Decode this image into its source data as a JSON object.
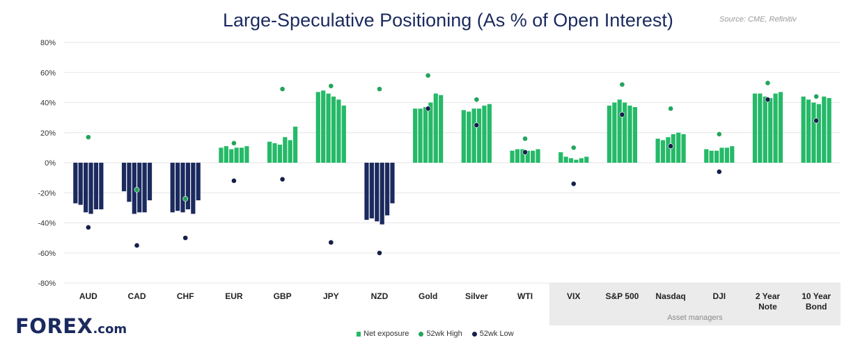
{
  "title": "Large-Speculative Positioning (As % of Open Interest)",
  "source": "Source: CME, Refinitiv",
  "logo": {
    "brand": "FOREX",
    "suffix": ".com"
  },
  "legend": {
    "net": "Net exposure",
    "high": "52wk High",
    "low": "52wk Low"
  },
  "asset_managers_label": "Asset managers",
  "colors": {
    "net": "#25b968",
    "net_negative": "#1b2a5e",
    "high": "#23a55a",
    "low": "#14204a",
    "shade": "#ebebeb",
    "grid": "#e6e6e6"
  },
  "chart_data": {
    "type": "bar",
    "ylim": [
      -80,
      80
    ],
    "yticks": [
      "80%",
      "60%",
      "40%",
      "20%",
      "0%",
      "-20%",
      "-40%",
      "-60%",
      "-80%"
    ],
    "categories": [
      {
        "label": [
          "AUD"
        ],
        "values": [
          -27,
          -28,
          -33,
          -34,
          -31,
          -31
        ],
        "high": 17,
        "low": -43
      },
      {
        "label": [
          "CAD"
        ],
        "values": [
          -19,
          -26,
          -34,
          -33,
          -33,
          -25
        ],
        "high": -18,
        "low": -55
      },
      {
        "label": [
          "CHF"
        ],
        "values": [
          -33,
          -32,
          -33,
          -31,
          -34,
          -25
        ],
        "high": -24,
        "low": -50
      },
      {
        "label": [
          "EUR"
        ],
        "values": [
          10,
          11,
          9,
          10,
          10,
          11
        ],
        "high": 13,
        "low": -12
      },
      {
        "label": [
          "GBP"
        ],
        "values": [
          14,
          13,
          12,
          17,
          15,
          24
        ],
        "high": 49,
        "low": -11
      },
      {
        "label": [
          "JPY"
        ],
        "values": [
          47,
          48,
          46,
          44,
          42,
          38
        ],
        "high": 51,
        "low": -53
      },
      {
        "label": [
          "NZD"
        ],
        "values": [
          -38,
          -37,
          -39,
          -41,
          -35,
          -27
        ],
        "high": 49,
        "low": -60
      },
      {
        "label": [
          "Gold"
        ],
        "values": [
          36,
          36,
          37,
          40,
          46,
          45
        ],
        "high": 58,
        "low": 36
      },
      {
        "label": [
          "Silver"
        ],
        "values": [
          35,
          34,
          36,
          36,
          38,
          39
        ],
        "high": 42,
        "low": 25
      },
      {
        "label": [
          "WTI"
        ],
        "values": [
          8,
          9,
          9,
          8,
          8,
          9
        ],
        "high": 16,
        "low": 7
      },
      {
        "label": [
          "VIX"
        ],
        "values": [
          7,
          4,
          3,
          2,
          3,
          4
        ],
        "high": 10,
        "low": -14
      },
      {
        "label": [
          "S&P 500"
        ],
        "values": [
          38,
          40,
          42,
          40,
          38,
          37
        ],
        "high": 52,
        "low": 32
      },
      {
        "label": [
          "Nasdaq"
        ],
        "values": [
          16,
          15,
          17,
          19,
          20,
          19
        ],
        "high": 36,
        "low": 11
      },
      {
        "label": [
          "DJI"
        ],
        "values": [
          9,
          8,
          8,
          10,
          10,
          11
        ],
        "high": 19,
        "low": -6
      },
      {
        "label": [
          "2 Year",
          "Note"
        ],
        "values": [
          46,
          46,
          44,
          43,
          46,
          47
        ],
        "high": 53,
        "low": 42
      },
      {
        "label": [
          "10 Year",
          "Bond"
        ],
        "values": [
          44,
          42,
          40,
          39,
          44,
          43
        ],
        "high": 44,
        "low": 28
      }
    ]
  }
}
